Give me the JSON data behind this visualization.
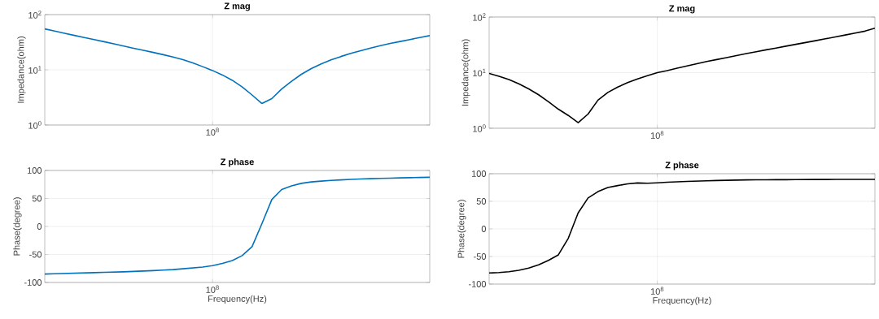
{
  "chart_data": [
    {
      "type": "line",
      "title": "Z mag",
      "ylabel": "Impedance(ohm)",
      "log": "y",
      "grid": true,
      "ylim": [
        1,
        100
      ],
      "categories": [
        null,
        null,
        null,
        null,
        null,
        null,
        null,
        null,
        null,
        null,
        null,
        null,
        null,
        null,
        null,
        null,
        null,
        "10$^{8}$",
        null,
        null,
        null,
        null,
        null,
        null,
        null,
        null,
        null,
        null,
        null,
        null,
        null,
        null,
        null,
        null,
        null,
        null,
        null,
        null,
        null,
        null
      ],
      "yticks": [
        {
          "value": 1,
          "label": "10$^{0}$"
        },
        {
          "value": 10,
          "label": "10$^{1}$"
        },
        {
          "value": 100,
          "label": "10$^{2}$"
        }
      ],
      "series": [
        {
          "color": "#0072bd",
          "values": [
            55,
            50.5,
            46,
            42,
            38.5,
            35.3,
            32.3,
            29.5,
            26.9,
            24.6,
            22.5,
            20.6,
            18.8,
            17,
            15.3,
            13.3,
            11.4,
            9.7,
            8.05,
            6.45,
            4.9,
            3.5,
            2.45,
            3.0,
            4.5,
            6.2,
            8.3,
            10.5,
            12.8,
            15.1,
            17.4,
            19.8,
            22.2,
            24.7,
            27.4,
            30,
            32.6,
            35.4,
            38.5,
            41.7
          ]
        }
      ]
    },
    {
      "type": "line",
      "title": "Z mag",
      "ylabel": "Impedance(ohm)",
      "log": "y",
      "grid": true,
      "ylim": [
        1,
        100
      ],
      "categories": [
        null,
        null,
        null,
        null,
        null,
        null,
        null,
        null,
        null,
        null,
        null,
        null,
        null,
        null,
        null,
        null,
        null,
        "10$^{8}$",
        null,
        null,
        null,
        null,
        null,
        null,
        null,
        null,
        null,
        null,
        null,
        null,
        null,
        null,
        null,
        null,
        null,
        null,
        null,
        null,
        null,
        null
      ],
      "yticks": [
        {
          "value": 1,
          "label": "10$^{0}$"
        },
        {
          "value": 10,
          "label": "10$^{1}$"
        },
        {
          "value": 100,
          "label": "10$^{2}$"
        }
      ],
      "series": [
        {
          "color": "#000000",
          "values": [
            9.7,
            8.6,
            7.5,
            6.3,
            5.1,
            4.0,
            3.0,
            2.2,
            1.7,
            1.26,
            1.8,
            3.2,
            4.4,
            5.5,
            6.6,
            7.7,
            8.8,
            10,
            10.9,
            12,
            13.2,
            14.5,
            15.9,
            17.2,
            18.6,
            20.2,
            22,
            23.8,
            25.7,
            27.7,
            29.9,
            32.3,
            34.8,
            37.6,
            40.6,
            44,
            47.5,
            51.5,
            55.8,
            63
          ]
        }
      ]
    },
    {
      "type": "line",
      "title": "Z phase",
      "ylabel": "Phase(degree)",
      "xlabel": "Frequency(Hz)",
      "grid": true,
      "ylim": [
        -100,
        100
      ],
      "categories": [
        null,
        null,
        null,
        null,
        null,
        null,
        null,
        null,
        null,
        null,
        null,
        null,
        null,
        null,
        null,
        null,
        null,
        "10$^{8}$",
        null,
        null,
        null,
        null,
        null,
        null,
        null,
        null,
        null,
        null,
        null,
        null,
        null,
        null,
        null,
        null,
        null,
        null,
        null,
        null,
        null,
        null
      ],
      "yticks": [
        {
          "value": -100,
          "label": "-100"
        },
        {
          "value": -50,
          "label": "-50"
        },
        {
          "value": 0,
          "label": "0"
        },
        {
          "value": 50,
          "label": "50"
        },
        {
          "value": 100,
          "label": "100"
        }
      ],
      "series": [
        {
          "color": "#0072bd",
          "values": [
            -85,
            -84.5,
            -84,
            -83.5,
            -83,
            -82.5,
            -82,
            -81.5,
            -81,
            -80.3,
            -79.5,
            -78.8,
            -78,
            -77,
            -75.5,
            -74,
            -72.5,
            -70,
            -66,
            -61,
            -52,
            -36,
            5,
            48,
            66,
            72.5,
            77,
            79.5,
            81,
            82.2,
            83.2,
            84,
            84.7,
            85.3,
            85.8,
            86.3,
            86.7,
            87.1,
            87.5,
            87.8
          ]
        }
      ]
    },
    {
      "type": "line",
      "title": "Z phase",
      "ylabel": "Phase(degree)",
      "xlabel": "Frequency(Hz)",
      "grid": true,
      "ylim": [
        -100,
        100
      ],
      "categories": [
        null,
        null,
        null,
        null,
        null,
        null,
        null,
        null,
        null,
        null,
        null,
        null,
        null,
        null,
        null,
        null,
        null,
        "10$^{8}$",
        null,
        null,
        null,
        null,
        null,
        null,
        null,
        null,
        null,
        null,
        null,
        null,
        null,
        null,
        null,
        null,
        null,
        null,
        null,
        null,
        null,
        null
      ],
      "yticks": [
        {
          "value": -100,
          "label": "-100"
        },
        {
          "value": -50,
          "label": "-50"
        },
        {
          "value": 0,
          "label": "0"
        },
        {
          "value": 50,
          "label": "50"
        },
        {
          "value": 100,
          "label": "100"
        }
      ],
      "series": [
        {
          "color": "#000000",
          "values": [
            -80,
            -79,
            -77.5,
            -75,
            -71,
            -65,
            -57,
            -47,
            -17,
            29,
            56,
            67.5,
            75,
            78.5,
            81.5,
            83.2,
            82.8,
            83.5,
            84.5,
            85.3,
            86,
            86.6,
            87.2,
            87.7,
            88.1,
            88.4,
            88.7,
            88.9,
            89,
            89.1,
            89.2,
            89.3,
            89.4,
            89.5,
            89.5,
            89.6,
            89.6,
            89.7,
            89.7,
            89.8
          ]
        }
      ]
    }
  ]
}
